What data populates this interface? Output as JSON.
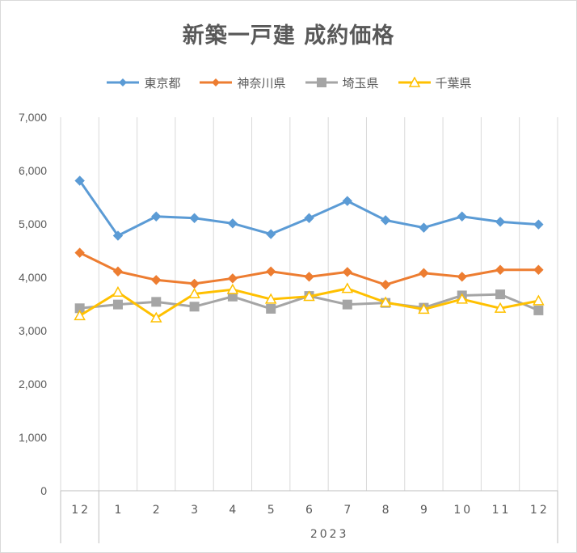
{
  "chart_data": {
    "type": "line",
    "title": "新築一戸建 成約価格",
    "categories": [
      "12",
      "1",
      "2",
      "3",
      "4",
      "5",
      "6",
      "7",
      "8",
      "9",
      "10",
      "11",
      "12"
    ],
    "group_labels": [
      {
        "label": "2023",
        "from": 1,
        "to": 12
      }
    ],
    "ylim": [
      0,
      7000
    ],
    "yticks": [
      0,
      1000,
      2000,
      3000,
      4000,
      5000,
      6000,
      7000
    ],
    "ytick_labels": [
      "0",
      "1,000",
      "2,000",
      "3,000",
      "4,000",
      "5,000",
      "6,000",
      "7,000"
    ],
    "grid": "vertical",
    "legend_position": "top",
    "series": [
      {
        "name": "東京都",
        "color": "#5b9bd5",
        "marker": "diamond",
        "values": [
          5810,
          4780,
          5140,
          5110,
          5010,
          4810,
          5110,
          5430,
          5070,
          4930,
          5140,
          5040,
          4990
        ]
      },
      {
        "name": "神奈川県",
        "color": "#ed7d31",
        "marker": "diamond",
        "values": [
          4460,
          4110,
          3950,
          3880,
          3980,
          4110,
          4010,
          4100,
          3860,
          4080,
          4010,
          4140,
          4140
        ]
      },
      {
        "name": "埼玉県",
        "color": "#a5a5a5",
        "marker": "square",
        "values": [
          3420,
          3490,
          3540,
          3450,
          3640,
          3410,
          3650,
          3490,
          3520,
          3430,
          3660,
          3680,
          3380
        ]
      },
      {
        "name": "千葉県",
        "color": "#ffc000",
        "marker": "triangle",
        "values": [
          3280,
          3720,
          3240,
          3690,
          3770,
          3590,
          3640,
          3790,
          3530,
          3400,
          3590,
          3420,
          3560
        ]
      }
    ]
  }
}
